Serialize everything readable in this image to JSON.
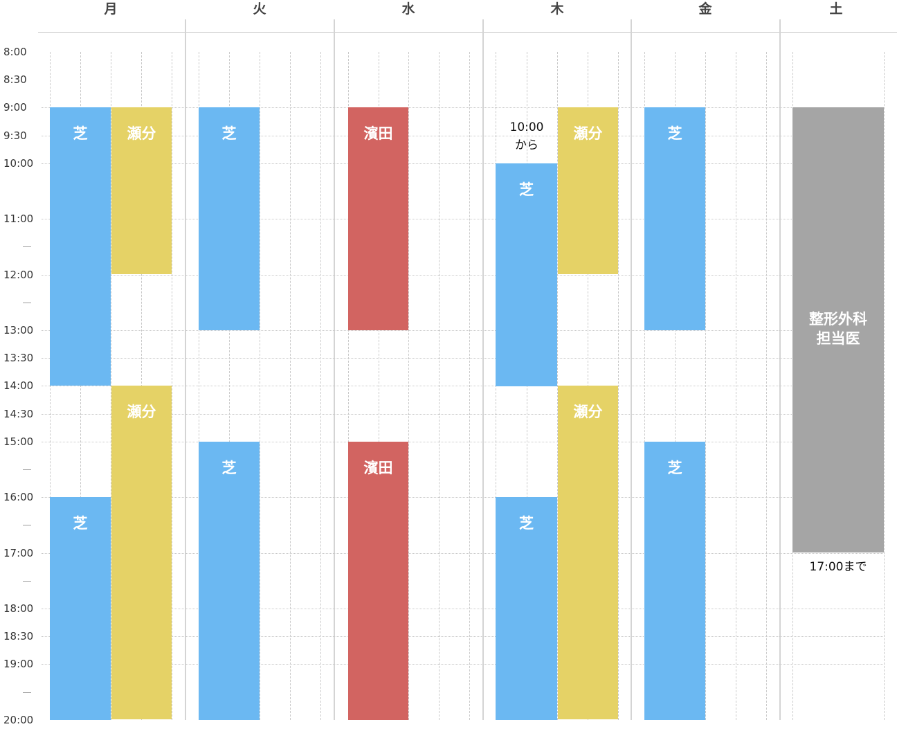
{
  "days": [
    "月",
    "火",
    "水",
    "木",
    "金",
    "土"
  ],
  "time_labels": [
    {
      "label": "8:00",
      "time": 8
    },
    {
      "label": "8:30",
      "time": 8.5
    },
    {
      "label": "9:00",
      "time": 9
    },
    {
      "label": "9:30",
      "time": 9.5
    },
    {
      "label": "10:00",
      "time": 10
    },
    {
      "label": "11:00",
      "time": 11
    },
    {
      "label": "12:00",
      "time": 12
    },
    {
      "label": "13:00",
      "time": 13
    },
    {
      "label": "13:30",
      "time": 13.5
    },
    {
      "label": "14:00",
      "time": 14
    },
    {
      "label": "14:30",
      "time": 14.5
    },
    {
      "label": "15:00",
      "time": 15
    },
    {
      "label": "16:00",
      "time": 16
    },
    {
      "label": "17:00",
      "time": 17
    },
    {
      "label": "18:00",
      "time": 18
    },
    {
      "label": "18:30",
      "time": 18.5
    },
    {
      "label": "19:00",
      "time": 19
    },
    {
      "label": "20:00",
      "time": 20
    }
  ],
  "tick_marks": [
    11.5,
    12.5,
    15.5,
    16.5,
    17.5,
    19.5
  ],
  "colors": {
    "shiba": "#6bb8f2",
    "sewake": "#e5d266",
    "hamada": "#d26461",
    "orthopedic": "#a5a5a5"
  },
  "shifts": [
    {
      "day": "月",
      "sub": "left",
      "start": 9,
      "end": 14,
      "label": "芝",
      "color": "shiba"
    },
    {
      "day": "月",
      "sub": "right",
      "start": 9,
      "end": 12,
      "label": "瀬分",
      "color": "sewake"
    },
    {
      "day": "月",
      "sub": "right",
      "start": 14,
      "end": 20,
      "label": "瀬分",
      "color": "sewake"
    },
    {
      "day": "月",
      "sub": "left",
      "start": 16,
      "end": 20,
      "label": "芝",
      "color": "shiba"
    },
    {
      "day": "火",
      "sub": "left",
      "start": 9,
      "end": 13,
      "label": "芝",
      "color": "shiba"
    },
    {
      "day": "火",
      "sub": "left",
      "start": 15,
      "end": 20,
      "label": "芝",
      "color": "shiba"
    },
    {
      "day": "水",
      "sub": "left",
      "start": 9,
      "end": 13,
      "label": "濱田",
      "color": "hamada"
    },
    {
      "day": "水",
      "sub": "left",
      "start": 15,
      "end": 20,
      "label": "濱田",
      "color": "hamada"
    },
    {
      "day": "木",
      "sub": "left",
      "start": 10,
      "end": 14,
      "label": "芝",
      "color": "shiba"
    },
    {
      "day": "木",
      "sub": "right",
      "start": 9,
      "end": 12,
      "label": "瀬分",
      "color": "sewake"
    },
    {
      "day": "木",
      "sub": "right",
      "start": 14,
      "end": 20,
      "label": "瀬分",
      "color": "sewake"
    },
    {
      "day": "木",
      "sub": "left",
      "start": 16,
      "end": 20,
      "label": "芝",
      "color": "shiba"
    },
    {
      "day": "金",
      "sub": "left",
      "start": 9,
      "end": 13,
      "label": "芝",
      "color": "shiba"
    },
    {
      "day": "金",
      "sub": "left",
      "start": 15,
      "end": 20,
      "label": "芝",
      "color": "shiba"
    },
    {
      "day": "土",
      "sub": "full",
      "start": 9,
      "end": 17,
      "label": "整形外科\n担当医",
      "color": "orthopedic"
    }
  ],
  "notes": [
    {
      "day": "木",
      "time": 9.5,
      "text": "10:00\nから"
    },
    {
      "day": "土",
      "time": 17.25,
      "text": "17:00まで"
    }
  ]
}
